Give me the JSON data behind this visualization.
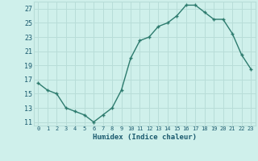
{
  "x": [
    0,
    1,
    2,
    3,
    4,
    5,
    6,
    7,
    8,
    9,
    10,
    11,
    12,
    13,
    14,
    15,
    16,
    17,
    18,
    19,
    20,
    21,
    22,
    23
  ],
  "y": [
    16.5,
    15.5,
    15.0,
    13.0,
    12.5,
    12.0,
    11.0,
    12.0,
    13.0,
    15.5,
    20.0,
    22.5,
    23.0,
    24.5,
    25.0,
    26.0,
    27.5,
    27.5,
    26.5,
    25.5,
    25.5,
    23.5,
    20.5,
    18.5
  ],
  "xlabel": "Humidex (Indice chaleur)",
  "xlim": [
    -0.5,
    23.5
  ],
  "ylim": [
    10.5,
    28.0
  ],
  "yticks": [
    11,
    13,
    15,
    17,
    19,
    21,
    23,
    25,
    27
  ],
  "xticks": [
    0,
    1,
    2,
    3,
    4,
    5,
    6,
    7,
    8,
    9,
    10,
    11,
    12,
    13,
    14,
    15,
    16,
    17,
    18,
    19,
    20,
    21,
    22,
    23
  ],
  "line_color": "#2d7b6e",
  "bg_color": "#cff0eb",
  "grid_color": "#b8ddd8",
  "label_color": "#1a5a6e"
}
